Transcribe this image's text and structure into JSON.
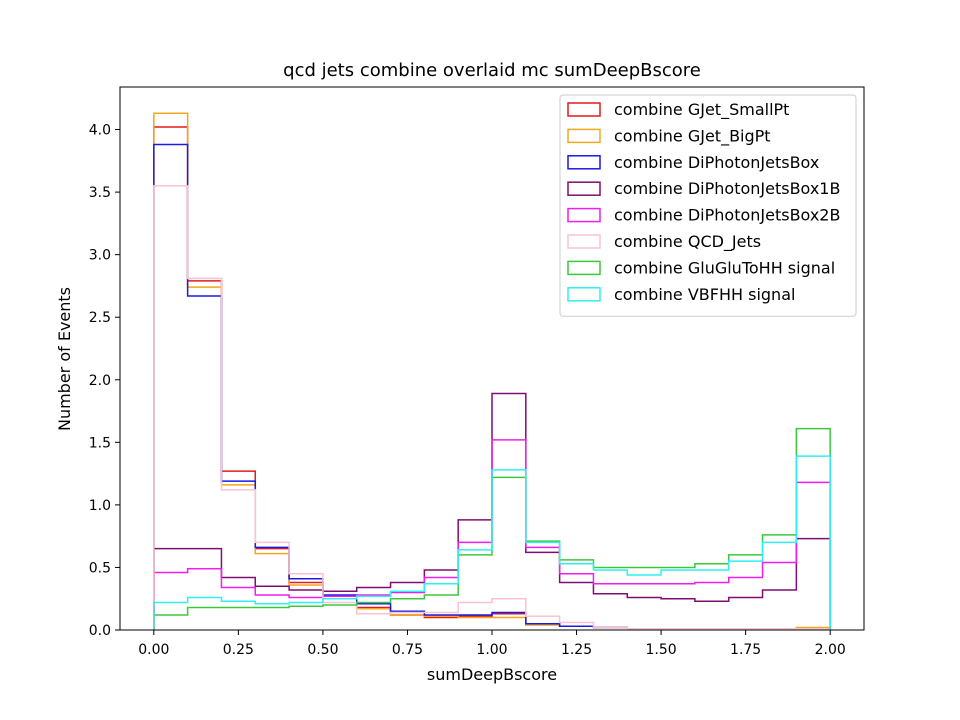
{
  "chart_data": {
    "type": "histogram-step",
    "title": "qcd jets combine overlaid mc sumDeepBscore",
    "xlabel": "sumDeepBscore",
    "ylabel": "Number of Events",
    "xlim": [
      -0.1,
      2.1
    ],
    "ylim": [
      0,
      4.34
    ],
    "xticks": [
      "0.00",
      "0.25",
      "0.50",
      "0.75",
      "1.00",
      "1.25",
      "1.50",
      "1.75",
      "2.00"
    ],
    "xtick_values": [
      0,
      0.25,
      0.5,
      0.75,
      1.0,
      1.25,
      1.5,
      1.75,
      2.0
    ],
    "yticks": [
      "0.0",
      "0.5",
      "1.0",
      "1.5",
      "2.0",
      "2.5",
      "3.0",
      "3.5",
      "4.0"
    ],
    "ytick_values": [
      0,
      0.5,
      1.0,
      1.5,
      2.0,
      2.5,
      3.0,
      3.5,
      4.0
    ],
    "bin_edges": [
      0.0,
      0.1,
      0.2,
      0.3,
      0.4,
      0.5,
      0.6,
      0.7,
      0.8,
      0.9,
      1.0,
      1.1,
      1.2,
      1.3,
      1.4,
      1.5,
      1.6,
      1.7,
      1.8,
      1.9,
      2.0
    ],
    "grid": false,
    "legend_position": "top-right",
    "series": [
      {
        "name": "combine GJet_SmallPt",
        "color": "#e41a1c",
        "values": [
          4.02,
          2.79,
          1.27,
          0.65,
          0.38,
          0.27,
          0.18,
          0.12,
          0.1,
          0.11,
          0.13,
          0.05,
          0.03,
          0.02,
          0.01,
          0.01,
          0.01,
          0.01,
          0.01,
          0.01
        ]
      },
      {
        "name": "combine GJet_BigPt",
        "color": "#f0a81e",
        "values": [
          4.13,
          2.74,
          1.16,
          0.61,
          0.36,
          0.25,
          0.17,
          0.12,
          0.11,
          0.1,
          0.1,
          0.04,
          0.03,
          0.02,
          0.01,
          0.01,
          0.01,
          0.01,
          0.01,
          0.02
        ]
      },
      {
        "name": "combine DiPhotonJetsBox",
        "color": "#1a1ae6",
        "values": [
          3.88,
          2.67,
          1.19,
          0.66,
          0.41,
          0.28,
          0.21,
          0.15,
          0.12,
          0.12,
          0.14,
          0.05,
          0.03,
          0.02,
          0.01,
          0.01,
          0.01,
          0.01,
          0.01,
          0.01
        ]
      },
      {
        "name": "combine DiPhotonJetsBox1B",
        "color": "#800d72",
        "values": [
          0.65,
          0.65,
          0.42,
          0.35,
          0.32,
          0.31,
          0.34,
          0.38,
          0.48,
          0.88,
          1.89,
          0.62,
          0.38,
          0.29,
          0.26,
          0.25,
          0.23,
          0.26,
          0.32,
          0.73
        ]
      },
      {
        "name": "combine DiPhotonJetsBox2B",
        "color": "#f01ef0",
        "values": [
          0.46,
          0.49,
          0.34,
          0.28,
          0.26,
          0.27,
          0.28,
          0.3,
          0.42,
          0.7,
          1.52,
          0.66,
          0.45,
          0.37,
          0.37,
          0.37,
          0.38,
          0.42,
          0.54,
          1.18
        ]
      },
      {
        "name": "combine QCD_Jets",
        "color": "#f9c3d3",
        "values": [
          3.55,
          2.81,
          1.12,
          0.7,
          0.45,
          0.22,
          0.13,
          0.14,
          0.14,
          0.22,
          0.25,
          0.11,
          0.06,
          0.02,
          0.01,
          0.01,
          0.01,
          0.01,
          0.01,
          0.01
        ]
      },
      {
        "name": "combine GluGluToHH signal",
        "color": "#3cc83c",
        "values": [
          0.12,
          0.18,
          0.18,
          0.18,
          0.19,
          0.2,
          0.22,
          0.25,
          0.28,
          0.6,
          1.22,
          0.71,
          0.56,
          0.5,
          0.5,
          0.5,
          0.53,
          0.6,
          0.76,
          1.61
        ]
      },
      {
        "name": "combine VBFHH signal",
        "color": "#2ef0f0",
        "values": [
          0.22,
          0.26,
          0.23,
          0.21,
          0.22,
          0.25,
          0.27,
          0.31,
          0.37,
          0.64,
          1.28,
          0.7,
          0.53,
          0.48,
          0.44,
          0.48,
          0.48,
          0.55,
          0.7,
          1.39
        ]
      }
    ]
  }
}
